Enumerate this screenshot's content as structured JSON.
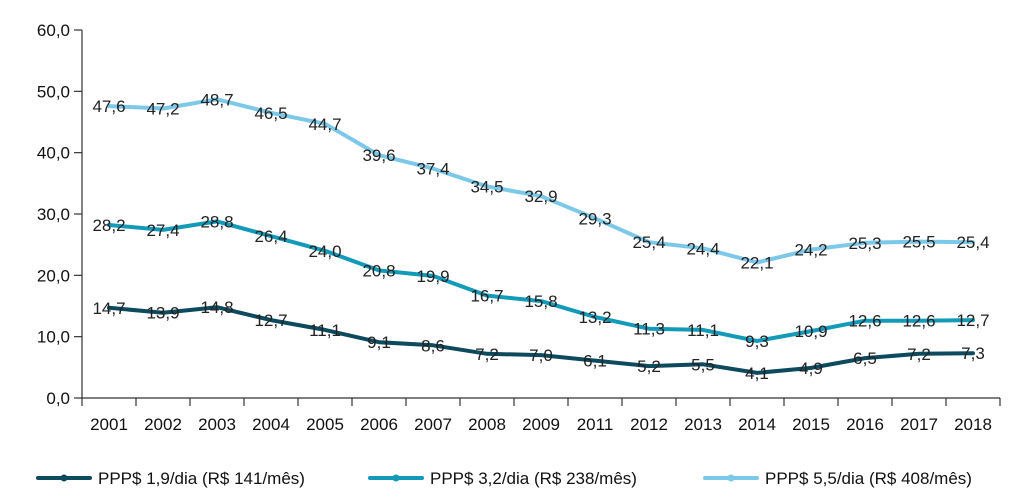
{
  "chart_data": {
    "type": "line",
    "categories": [
      "2001",
      "2002",
      "2003",
      "2004",
      "2005",
      "2006",
      "2007",
      "2008",
      "2009",
      "2011",
      "2012",
      "2013",
      "2014",
      "2015",
      "2016",
      "2017",
      "2018"
    ],
    "y_ticks": [
      "0,0",
      "10,0",
      "20,0",
      "30,0",
      "40,0",
      "50,0",
      "60,0"
    ],
    "ylim": [
      0,
      60
    ],
    "grid": false,
    "legend_position": "bottom",
    "series": [
      {
        "name": "PPP$ 1,9/dia (R$ 141/mês)",
        "color": "#0d4a5e",
        "values": [
          14.7,
          13.9,
          14.8,
          12.7,
          11.1,
          9.1,
          8.6,
          7.2,
          7.0,
          6.1,
          5.2,
          5.5,
          4.1,
          4.9,
          6.5,
          7.2,
          7.3
        ],
        "labels": [
          "14,7",
          "13,9",
          "14,8",
          "12,7",
          "11,1",
          "9,1",
          "8,6",
          "7,2",
          "7,0",
          "6,1",
          "5,2",
          "5,5",
          "4,1",
          "4,9",
          "6,5",
          "7,2",
          "7,3"
        ]
      },
      {
        "name": "PPP$ 3,2/dia (R$ 238/mês)",
        "color": "#139ab9",
        "values": [
          28.2,
          27.4,
          28.8,
          26.4,
          24.0,
          20.8,
          19.9,
          16.7,
          15.8,
          13.2,
          11.3,
          11.1,
          9.3,
          10.9,
          12.6,
          12.6,
          12.7
        ],
        "labels": [
          "28,2",
          "27,4",
          "28,8",
          "26,4",
          "24,0",
          "20,8",
          "19,9",
          "16,7",
          "15,8",
          "13,2",
          "11,3",
          "11,1",
          "9,3",
          "10,9",
          "12,6",
          "12,6",
          "12,7"
        ]
      },
      {
        "name": "PPP$ 5,5/dia (R$ 408/mês)",
        "color": "#7cc8e8",
        "values": [
          47.6,
          47.2,
          48.7,
          46.5,
          44.7,
          39.6,
          37.4,
          34.5,
          32.9,
          29.3,
          25.4,
          24.4,
          22.1,
          24.2,
          25.3,
          25.5,
          25.4
        ],
        "labels": [
          "47,6",
          "47,2",
          "48,7",
          "46,5",
          "44,7",
          "39,6",
          "37,4",
          "34,5",
          "32,9",
          "29,3",
          "25,4",
          "24,4",
          "22,1",
          "24,2",
          "25,3",
          "25,5",
          "25,4"
        ]
      }
    ]
  }
}
